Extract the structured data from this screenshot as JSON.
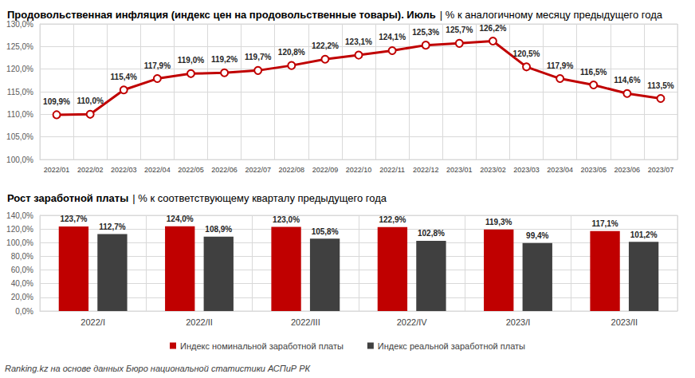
{
  "chart_data": [
    {
      "type": "line",
      "title": "Продовольственная инфляция (индекс цен на продовольственные товары). Июль",
      "subtitle": "| % к аналогичному месяцу предыдущего года",
      "categories": [
        "2022/01",
        "2022/02",
        "2022/03",
        "2022/04",
        "2022/05",
        "2022/06",
        "2022/07",
        "2022/08",
        "2022/09",
        "2022/10",
        "2022/11",
        "2022/12",
        "2023/01",
        "2023/02",
        "2023/03",
        "2023/04",
        "2023/05",
        "2023/06",
        "2023/07"
      ],
      "values": [
        109.9,
        110.0,
        115.4,
        117.9,
        119.0,
        119.2,
        119.7,
        120.8,
        122.2,
        123.1,
        124.1,
        125.3,
        125.7,
        126.2,
        120.5,
        117.9,
        116.5,
        114.6,
        113.5
      ],
      "value_labels": [
        "109,9%",
        "110,0%",
        "115,4%",
        "117,9%",
        "119,0%",
        "119,2%",
        "119,7%",
        "120,8%",
        "122,2%",
        "123,1%",
        "124,1%",
        "125,3%",
        "125,7%",
        "126,2%",
        "120,5%",
        "117,9%",
        "116,5%",
        "114,6%",
        "113,5%"
      ],
      "color": "#c00000",
      "marker": "circle",
      "ylim": [
        100,
        130
      ],
      "yticks": [
        {
          "value": 100,
          "label": "100,0%"
        },
        {
          "value": 105,
          "label": "105,0%"
        },
        {
          "value": 110,
          "label": "110,0%"
        },
        {
          "value": 115,
          "label": "115,0%"
        },
        {
          "value": 120,
          "label": "120,0%"
        },
        {
          "value": 125,
          "label": "125,0%"
        },
        {
          "value": 130,
          "label": "130,0%"
        }
      ],
      "grid": true,
      "data_labels": true
    },
    {
      "type": "bar",
      "title": "Рост заработной платы",
      "subtitle": "| % к соответствующему кварталу предыдущего года",
      "categories": [
        "2022/I",
        "2022/II",
        "2022/III",
        "2022/IV",
        "2023/I",
        "2023/II"
      ],
      "series": [
        {
          "name": "Индекс номинальной заработной платы",
          "color": "#c00000",
          "values": [
            123.7,
            124.0,
            123.0,
            122.9,
            119.3,
            117.1
          ],
          "value_labels": [
            "123,7%",
            "124,0%",
            "123,0%",
            "122,9%",
            "119,3%",
            "117,1%"
          ]
        },
        {
          "name": "Индекс реальной заработной платы",
          "color": "#404040",
          "values": [
            112.7,
            108.9,
            105.8,
            102.8,
            99.4,
            101.2
          ],
          "value_labels": [
            "112,7%",
            "108,9%",
            "105,8%",
            "102,8%",
            "99,4%",
            "101,2%"
          ]
        }
      ],
      "ylim": [
        0,
        140
      ],
      "yticks": [
        {
          "value": 0,
          "label": "0,0%"
        },
        {
          "value": 20,
          "label": "20,0%"
        },
        {
          "value": 40,
          "label": "40,0%"
        },
        {
          "value": 60,
          "label": "60,0%"
        },
        {
          "value": 80,
          "label": "80,0%"
        },
        {
          "value": 100,
          "label": "100,0%"
        },
        {
          "value": 120,
          "label": "120,0%"
        },
        {
          "value": 140,
          "label": "140,0%"
        }
      ],
      "grid": true,
      "legend": "bottom",
      "data_labels": true
    }
  ],
  "source": "Ranking.kz на основе данных Бюро национальной статистики АСПиР РК"
}
